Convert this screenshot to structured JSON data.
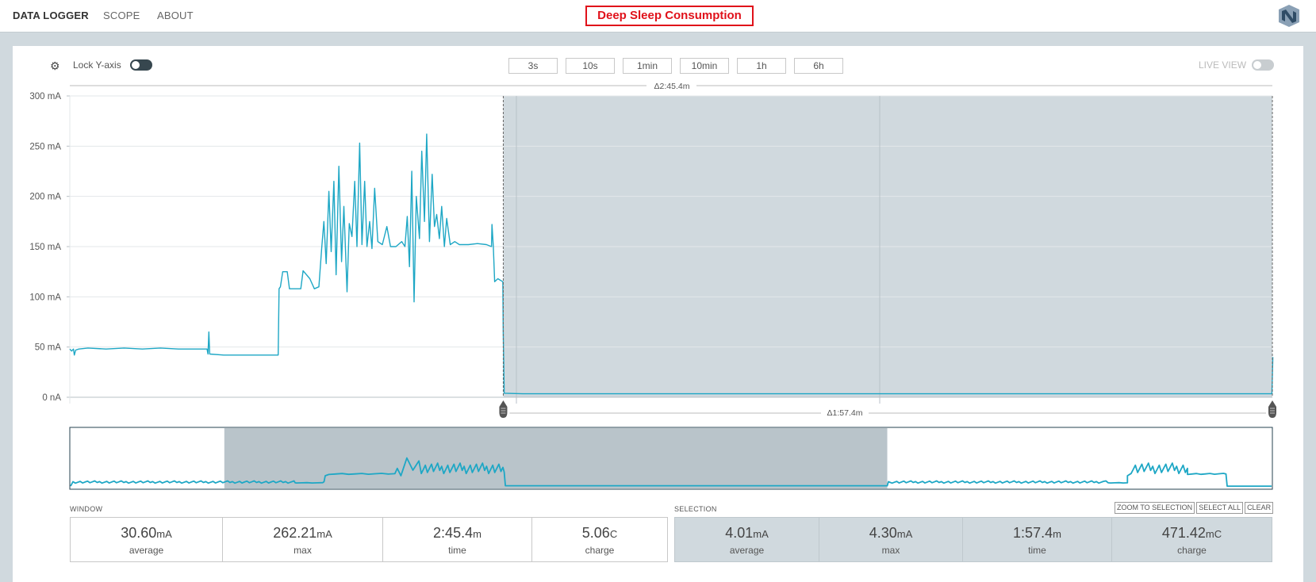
{
  "nav": {
    "items": [
      {
        "label": "DATA LOGGER",
        "active": true
      },
      {
        "label": "SCOPE",
        "active": false
      },
      {
        "label": "ABOUT",
        "active": false
      }
    ]
  },
  "title": "Deep Sleep Consumption",
  "toolbar": {
    "settings_icon": "gear-icon",
    "lock_label": "Lock Y-axis",
    "lock_enabled": false,
    "window_buttons": [
      "3s",
      "10s",
      "1min",
      "10min",
      "1h",
      "6h"
    ],
    "live_view_label": "LIVE VIEW",
    "live_view_enabled": false
  },
  "chart_data": {
    "type": "line",
    "y_ticks": [
      "300 mA",
      "250 mA",
      "200 mA",
      "150 mA",
      "100 mA",
      "50 mA",
      "0 nA"
    ],
    "ylim": [
      0,
      300
    ],
    "y_unit": "mA",
    "window_delta_label": "Δ2:45.4m",
    "selection_delta_label": "Δ1:57.4m",
    "color": "#1ea7c5",
    "selection_color": "#d0d9de",
    "series": [
      {
        "points": [
          [
            0,
            48
          ],
          [
            0.4,
            46
          ],
          [
            0.8,
            48
          ],
          [
            1,
            42
          ],
          [
            1.3,
            47
          ],
          [
            2,
            48
          ],
          [
            4,
            49
          ],
          [
            8,
            48
          ],
          [
            12,
            49
          ],
          [
            16,
            48
          ],
          [
            20,
            49
          ],
          [
            24,
            48
          ],
          [
            28,
            48
          ],
          [
            30.3,
            48
          ],
          [
            30.5,
            43
          ],
          [
            30.7,
            65
          ],
          [
            30.9,
            43
          ],
          [
            34,
            42
          ],
          [
            40,
            42
          ],
          [
            46,
            42
          ],
          [
            46.2,
            108
          ],
          [
            46.5,
            110
          ],
          [
            47,
            125
          ],
          [
            48,
            125
          ],
          [
            48.5,
            108
          ],
          [
            51,
            108
          ],
          [
            51.5,
            126
          ],
          [
            53,
            118
          ],
          [
            54,
            108
          ],
          [
            55,
            110
          ],
          [
            55.6,
            148
          ],
          [
            56.1,
            175
          ],
          [
            56.6,
            133
          ],
          [
            57.2,
            205
          ],
          [
            57.7,
            145
          ],
          [
            58.3,
            215
          ],
          [
            58.8,
            122
          ],
          [
            59.4,
            230
          ],
          [
            60,
            135
          ],
          [
            60.5,
            190
          ],
          [
            61.2,
            105
          ],
          [
            61.7,
            173
          ],
          [
            62.3,
            160
          ],
          [
            62.9,
            215
          ],
          [
            63.4,
            150
          ],
          [
            64,
            253
          ],
          [
            64.5,
            152
          ],
          [
            65.1,
            215
          ],
          [
            65.6,
            150
          ],
          [
            66.2,
            175
          ],
          [
            66.7,
            148
          ],
          [
            67.3,
            208
          ],
          [
            68,
            155
          ],
          [
            69,
            152
          ],
          [
            70,
            170
          ],
          [
            70.8,
            150
          ],
          [
            72,
            150
          ],
          [
            73.3,
            155
          ],
          [
            74,
            150
          ],
          [
            74.5,
            180
          ],
          [
            75,
            130
          ],
          [
            75.5,
            225
          ],
          [
            76,
            95
          ],
          [
            76.5,
            200
          ],
          [
            77.2,
            158
          ],
          [
            77.7,
            245
          ],
          [
            78.3,
            175
          ],
          [
            78.8,
            262
          ],
          [
            79.4,
            155
          ],
          [
            80,
            222
          ],
          [
            80.5,
            170
          ],
          [
            81,
            182
          ],
          [
            81.6,
            158
          ],
          [
            82.1,
            190
          ],
          [
            82.7,
            150
          ],
          [
            83.2,
            178
          ],
          [
            84,
            152
          ],
          [
            85,
            155
          ],
          [
            86,
            152
          ],
          [
            88,
            152
          ],
          [
            90,
            153
          ],
          [
            92,
            152
          ],
          [
            93.1,
            150
          ],
          [
            93.2,
            172
          ],
          [
            93.5,
            150
          ],
          [
            93.8,
            115
          ],
          [
            94.5,
            118
          ],
          [
            95.6,
            115
          ],
          [
            95.7,
            65
          ],
          [
            95.9,
            4
          ],
          [
            100,
            3.5
          ],
          [
            120,
            3.5
          ],
          [
            150,
            3.5
          ],
          [
            180,
            3.5
          ],
          [
            210,
            3.5
          ],
          [
            240,
            3.5
          ],
          [
            265.4,
            3.5
          ],
          [
            265.6,
            40
          ]
        ]
      }
    ],
    "selection_range": [
      95.7,
      265.5
    ],
    "overview_selection_range": [
      0.128,
      0.68
    ]
  },
  "window_stats": {
    "label": "WINDOW",
    "cells": [
      {
        "num": "30.60",
        "unit": "mA",
        "label": "average"
      },
      {
        "num": "262.21",
        "unit": "mA",
        "label": "max"
      },
      {
        "num": "2:45.4",
        "unit": "m",
        "label": "time"
      },
      {
        "num": "5.06",
        "unit": "C",
        "label": "charge"
      }
    ]
  },
  "selection_stats": {
    "label": "SELECTION",
    "buttons": [
      "ZOOM TO SELECTION",
      "SELECT ALL",
      "CLEAR"
    ],
    "cells": [
      {
        "num": "4.01",
        "unit": "mA",
        "label": "average"
      },
      {
        "num": "4.30",
        "unit": "mA",
        "label": "max"
      },
      {
        "num": "1:57.4",
        "unit": "m",
        "label": "time"
      },
      {
        "num": "471.42",
        "unit": "mC",
        "label": "charge"
      }
    ]
  }
}
